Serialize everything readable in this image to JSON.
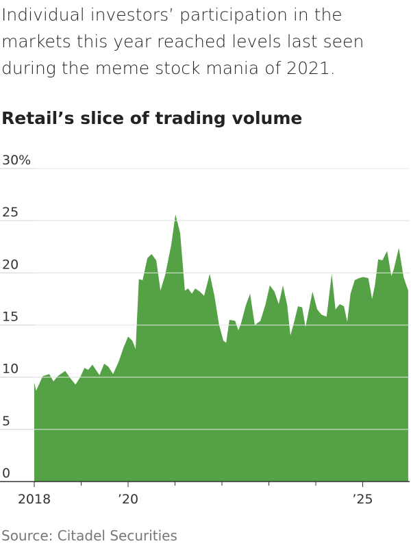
{
  "chart_data": {
    "type": "area",
    "subtitle": "Individual investors’ participation in the markets this year reached levels last seen during the meme stock mania of 2021.",
    "title": "Retail’s slice of trading volume",
    "source": "Source: Citadel Securities",
    "color": "#55a145",
    "grid": true,
    "x": [
      2018.0,
      2018.04,
      2018.18,
      2018.32,
      2018.41,
      2018.5,
      2018.66,
      2018.77,
      2018.88,
      2018.98,
      2019.07,
      2019.15,
      2019.24,
      2019.39,
      2019.49,
      2019.58,
      2019.68,
      2019.8,
      2019.9,
      2020.0,
      2020.09,
      2020.16,
      2020.23,
      2020.31,
      2020.41,
      2020.5,
      2020.6,
      2020.69,
      2020.79,
      2020.92,
      2021.01,
      2021.11,
      2021.21,
      2021.28,
      2021.36,
      2021.43,
      2021.53,
      2021.62,
      2021.74,
      2021.84,
      2021.94,
      2022.03,
      2022.09,
      2022.16,
      2022.28,
      2022.35,
      2022.41,
      2022.51,
      2022.6,
      2022.7,
      2022.82,
      2022.93,
      2023.02,
      2023.12,
      2023.21,
      2023.3,
      2023.39,
      2023.46,
      2023.55,
      2023.62,
      2023.71,
      2023.78,
      2023.93,
      2024.03,
      2024.12,
      2024.23,
      2024.34,
      2024.42,
      2024.51,
      2024.6,
      2024.67,
      2024.74,
      2024.83,
      2024.92,
      2025.01,
      2025.12,
      2025.2,
      2025.26,
      2025.33,
      2025.42,
      2025.52,
      2025.61,
      2025.66,
      2025.77,
      2025.87,
      2025.97
    ],
    "values": [
      9.5,
      8.7,
      10.1,
      10.3,
      9.6,
      10.1,
      10.6,
      9.9,
      9.3,
      10.0,
      10.9,
      10.7,
      11.2,
      10.2,
      11.3,
      11.0,
      10.3,
      11.5,
      12.8,
      13.9,
      13.5,
      12.7,
      19.4,
      19.3,
      21.4,
      21.8,
      21.2,
      18.3,
      19.8,
      22.7,
      25.6,
      23.8,
      18.3,
      18.5,
      18.0,
      18.5,
      18.2,
      17.8,
      19.9,
      17.8,
      15.0,
      13.5,
      13.3,
      15.5,
      15.4,
      14.5,
      15.2,
      16.9,
      18.0,
      15.0,
      15.4,
      17.0,
      18.8,
      18.2,
      17.0,
      18.8,
      16.9,
      14.0,
      15.5,
      16.8,
      16.7,
      14.8,
      18.2,
      16.5,
      16.0,
      15.8,
      19.9,
      16.5,
      17.0,
      16.8,
      15.3,
      18.0,
      19.3,
      19.5,
      19.6,
      19.5,
      17.5,
      18.8,
      21.3,
      21.2,
      22.1,
      19.7,
      20.3,
      22.4,
      19.6,
      18.3
    ],
    "xlim": [
      2018,
      2026
    ],
    "xticks": [
      {
        "value": 2018,
        "label": "2018"
      },
      {
        "value": 2020,
        "label": "’20"
      },
      {
        "value": 2025,
        "label": "’25"
      }
    ],
    "minor_xticks": [
      2019,
      2021,
      2022,
      2023,
      2024
    ],
    "ylim": [
      0,
      30
    ],
    "yticks": [
      0,
      5,
      10,
      15,
      20,
      25,
      {
        "value": 30,
        "label": "30%"
      }
    ]
  }
}
